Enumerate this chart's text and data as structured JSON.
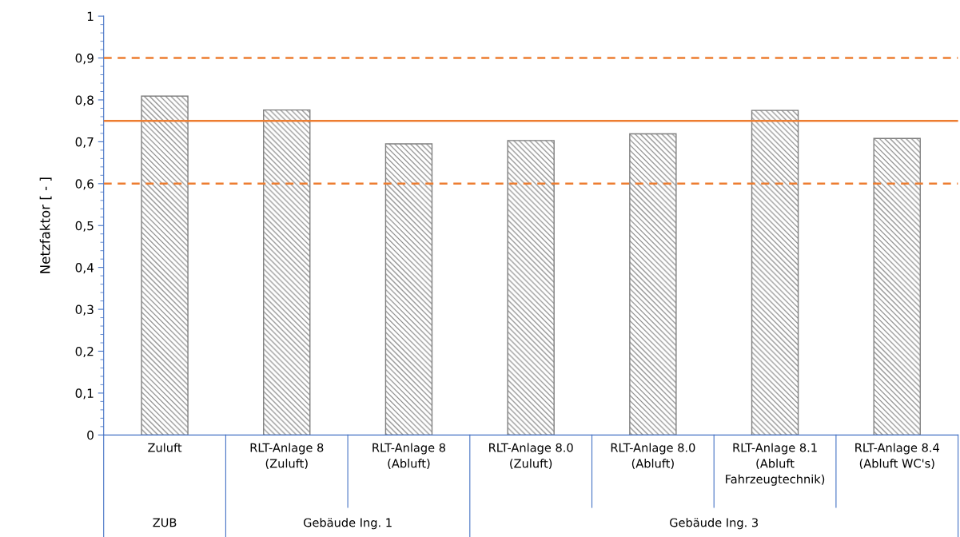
{
  "chart_data": {
    "type": "bar",
    "ylabel": "Netzfaktor [ - ]",
    "categories": [
      "Zuluft",
      "RLT-Anlage 8\n(Zuluft)",
      "RLT-Anlage 8\n(Abluft)",
      "RLT-Anlage 8.0\n(Zuluft)",
      "RLT-Anlage 8.0\n(Abluft)",
      "RLT-Anlage 8.1\n(Abluft\nFahrzeugtechnik)",
      "RLT-Anlage 8.4\n(Abluft WC's)"
    ],
    "values": [
      0.809,
      0.776,
      0.695,
      0.703,
      0.719,
      0.775,
      0.708
    ],
    "color": "#7f7f7f",
    "ylim": [
      0,
      1
    ],
    "yticks": [
      {
        "value": 0,
        "label": "0"
      },
      {
        "value": 0.1,
        "label": "0,1"
      },
      {
        "value": 0.2,
        "label": "0,2"
      },
      {
        "value": 0.3,
        "label": "0,3"
      },
      {
        "value": 0.4,
        "label": "0,4"
      },
      {
        "value": 0.5,
        "label": "0,5"
      },
      {
        "value": 0.6,
        "label": "0,6"
      },
      {
        "value": 0.7,
        "label": "0,7"
      },
      {
        "value": 0.8,
        "label": "0,8"
      },
      {
        "value": 0.9,
        "label": "0,9"
      },
      {
        "value": 1,
        "label": "1"
      }
    ],
    "ref_lines": [
      {
        "axis": "y",
        "value": 0.9,
        "color": "#ed7d31",
        "line_style": "dashed"
      },
      {
        "axis": "y",
        "value": 0.75,
        "color": "#ed7d31",
        "line_style": "solid"
      },
      {
        "axis": "y",
        "value": 0.6,
        "color": "#ed7d31",
        "line_style": "dashed"
      }
    ],
    "annotations": [
      "ZUB",
      "Gebäude Ing. 1",
      "Gebäude Ing. 3"
    ],
    "grid": false,
    "legend": false
  }
}
